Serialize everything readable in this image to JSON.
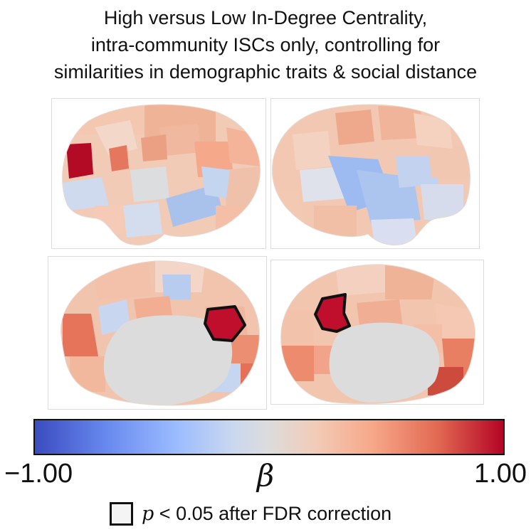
{
  "title": {
    "line1": "High versus Low In-Degree Centrality,",
    "line2": "intra-community ISCs only, controlling for",
    "line3": "similarities in demographic traits & social distance"
  },
  "colorbar": {
    "min_label": "−1.00",
    "max_label": "1.00",
    "symbol": "β",
    "colors": {
      "low": "#3b4cc0",
      "mid": "#dddcdc",
      "high": "#b40426"
    }
  },
  "legend": {
    "p_symbol": "p",
    "text": " < 0.05 after FDR correction"
  },
  "panels": [
    {
      "name": "left-lateral"
    },
    {
      "name": "right-lateral"
    },
    {
      "name": "left-medial"
    },
    {
      "name": "right-medial"
    }
  ]
}
